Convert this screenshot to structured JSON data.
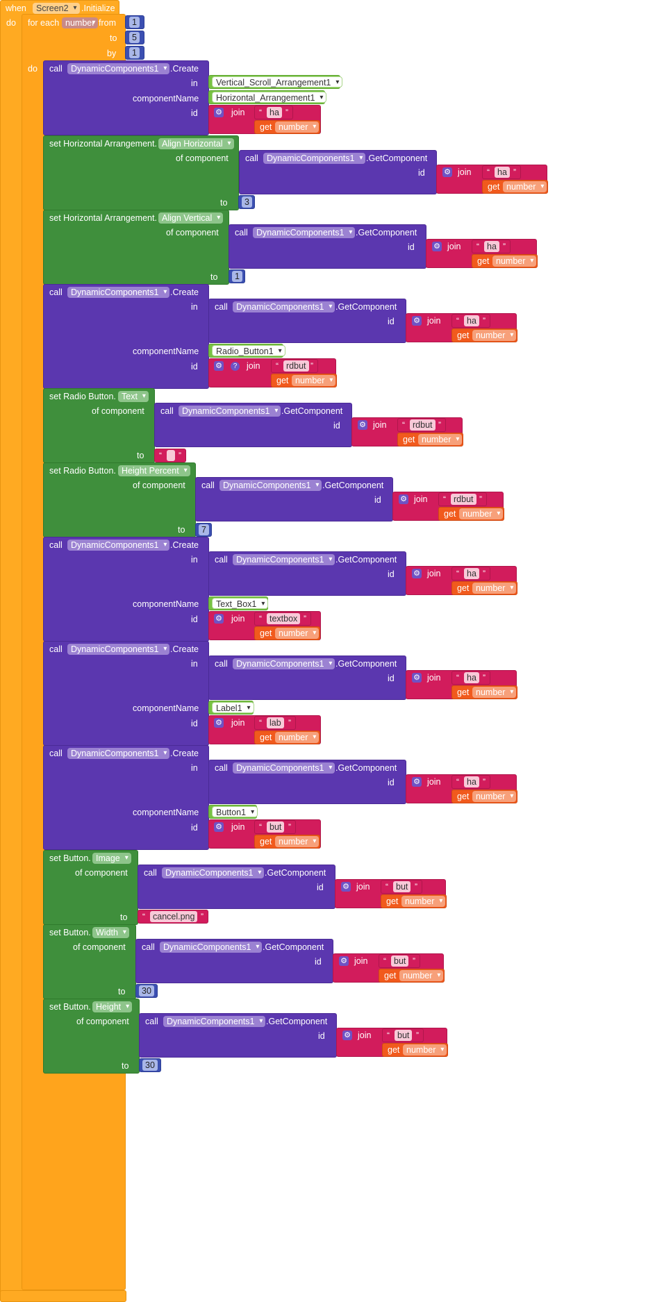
{
  "event": {
    "when": "when",
    "component": "Screen2",
    "event_name": ".Initialize",
    "do": "do"
  },
  "loop": {
    "for_each": "for each",
    "variable": "number",
    "from_label": "from",
    "from": "1",
    "to_label": "to",
    "to": "5",
    "by_label": "by",
    "by": "1",
    "do": "do"
  },
  "kw": {
    "call": "call",
    "set": "set",
    "in": "in",
    "component_name": "componentName",
    "id": "id",
    "join": "join",
    "get": "get",
    "to": "to",
    "of_component": "of component",
    "create": ".Create",
    "get_component": ".GetComponent",
    "dc": "DynamicComponents1",
    "number": "number"
  },
  "colors": {
    "event": "#ffaa22",
    "call": "#5b37af",
    "setter": "#3f8f3c",
    "text": "#d21c5c",
    "get": "#f15a1d",
    "math": "#3b4fb1",
    "component": "#78c243"
  },
  "icons": {
    "mutator": "gear-icon",
    "help": "question-icon",
    "dropdown": "chevron-down-icon"
  },
  "components": {
    "vsa": "Vertical_Scroll_Arrangement1",
    "ha": "Horizontal_Arrangement1",
    "radio": "Radio_Button1",
    "textbox": "Text_Box1",
    "label": "Label1",
    "button": "Button1"
  },
  "setters": {
    "ha_align_h": {
      "prefix": "set Horizontal Arrangement.",
      "prop": "Align Horizontal",
      "value": "3"
    },
    "ha_align_v": {
      "prefix": "set Horizontal Arrangement.",
      "prop": "Align Vertical",
      "value": "1"
    },
    "rb_text": {
      "prefix": "set Radio Button.",
      "prop": "Text",
      "value": ""
    },
    "rb_height": {
      "prefix": "set Radio Button.",
      "prop": "Height Percent",
      "value": "7"
    },
    "btn_image": {
      "prefix": "set Button.",
      "prop": "Image",
      "value": "cancel.png"
    },
    "btn_width": {
      "prefix": "set Button.",
      "prop": "Width",
      "value": "30"
    },
    "btn_height": {
      "prefix": "set Button.",
      "prop": "Height",
      "value": "30"
    }
  },
  "strings": {
    "ha": "ha",
    "rdbut": "rdbut",
    "textbox": "textbox",
    "lab": "lab",
    "but": "but"
  }
}
